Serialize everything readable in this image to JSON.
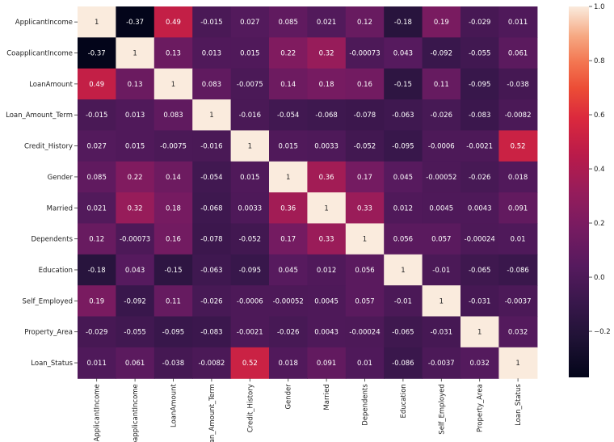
{
  "chart_data": {
    "type": "heatmap",
    "title": "",
    "labels": [
      "ApplicantIncome",
      "CoapplicantIncome",
      "LoanAmount",
      "Loan_Amount_Term",
      "Credit_History",
      "Gender",
      "Married",
      "Dependents",
      "Education",
      "Self_Employed",
      "Property_Area",
      "Loan_Status"
    ],
    "values": [
      [
        1,
        -0.37,
        0.49,
        -0.015,
        0.027,
        0.085,
        0.021,
        0.12,
        -0.18,
        0.19,
        -0.029,
        0.011
      ],
      [
        -0.37,
        1,
        0.13,
        0.013,
        0.015,
        0.22,
        0.32,
        -0.00073,
        0.043,
        -0.092,
        -0.055,
        0.061
      ],
      [
        0.49,
        0.13,
        1,
        0.083,
        -0.0075,
        0.14,
        0.18,
        0.16,
        -0.15,
        0.11,
        -0.095,
        -0.038
      ],
      [
        -0.015,
        0.013,
        0.083,
        1,
        -0.016,
        -0.054,
        -0.068,
        -0.078,
        -0.063,
        -0.026,
        -0.083,
        -0.0082
      ],
      [
        0.027,
        0.015,
        -0.0075,
        -0.016,
        1,
        0.015,
        0.0033,
        -0.052,
        -0.095,
        -0.0006,
        -0.0021,
        0.52
      ],
      [
        0.085,
        0.22,
        0.14,
        -0.054,
        0.015,
        1,
        0.36,
        0.17,
        0.045,
        -0.00052,
        -0.026,
        0.018
      ],
      [
        0.021,
        0.32,
        0.18,
        -0.068,
        0.0033,
        0.36,
        1,
        0.33,
        0.012,
        0.0045,
        0.0043,
        0.091
      ],
      [
        0.12,
        -0.00073,
        0.16,
        -0.078,
        -0.052,
        0.17,
        0.33,
        1,
        0.056,
        0.057,
        -0.00024,
        0.01
      ],
      [
        -0.18,
        0.043,
        -0.15,
        -0.063,
        -0.095,
        0.045,
        0.012,
        0.056,
        1,
        -0.01,
        -0.065,
        -0.086
      ],
      [
        0.19,
        -0.092,
        0.11,
        -0.026,
        -0.0006,
        -0.00052,
        0.0045,
        0.057,
        -0.01,
        1,
        -0.031,
        -0.0037
      ],
      [
        -0.029,
        -0.055,
        -0.095,
        -0.083,
        -0.0021,
        -0.026,
        0.0043,
        -0.00024,
        -0.065,
        -0.031,
        1,
        0.032
      ],
      [
        0.011,
        0.061,
        -0.038,
        -0.0082,
        0.52,
        0.018,
        0.091,
        0.01,
        -0.086,
        -0.0037,
        0.032,
        1
      ]
    ],
    "colorbar": {
      "colormap": "rocket",
      "range": [
        -0.37,
        1.0
      ],
      "ticks": [
        -0.2,
        0.0,
        0.2,
        0.4,
        0.6,
        0.8,
        1.0
      ],
      "tick_labels": [
        "−0.2",
        "0.0",
        "0.2",
        "0.4",
        "0.6",
        "0.8",
        "1.0"
      ]
    },
    "annotations": "values printed in each cell",
    "legend": "colorbar-right"
  }
}
